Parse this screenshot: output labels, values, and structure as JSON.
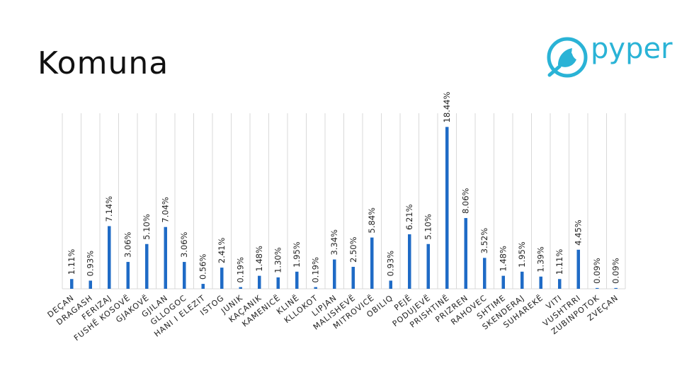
{
  "slide": {
    "title": "Komuna",
    "brand": "pyper"
  },
  "colors": {
    "bar": "#1f6bc6",
    "gridline": "#d9d9d9",
    "brand": "#2ab3d6"
  },
  "icons": {
    "logo": "bird-in-circle-icon"
  },
  "chart_data": {
    "type": "bar",
    "title": "",
    "xlabel": "",
    "ylabel": "",
    "ylim": [
      0,
      20
    ],
    "grid": "vertical",
    "legend": "none",
    "categories": [
      "DEÇAN",
      "DRAGASH",
      "FERIZAJ",
      "FUSHË KOSOVË",
      "GJAKOVË",
      "GJILAN",
      "GLLOGOC",
      "HANI I ELEZIT",
      "ISTOG",
      "JUNIK",
      "KAÇANIK",
      "KAMENICË",
      "KLINË",
      "KLLOKOT",
      "LIPJAN",
      "MALISHEVË",
      "MITROVICË",
      "OBILIQ",
      "PEJË",
      "PODUJEVË",
      "PRISHTINË",
      "PRIZREN",
      "RAHOVEC",
      "SHTIME",
      "SKENDERAJ",
      "SUHAREKË",
      "VITI",
      "VUSHTRRI",
      "ZUBINPOTOK",
      "ZVEÇAN"
    ],
    "values": [
      1.11,
      0.93,
      7.14,
      3.06,
      5.1,
      7.04,
      3.06,
      0.56,
      2.41,
      0.19,
      1.48,
      1.3,
      1.95,
      0.19,
      3.34,
      2.5,
      5.84,
      0.93,
      6.21,
      5.1,
      18.44,
      8.06,
      3.52,
      1.48,
      1.95,
      1.39,
      1.11,
      4.45,
      0.09,
      0.09
    ],
    "data_labels": [
      "1.11%",
      "0.93%",
      "7.14%",
      "3.06%",
      "5.10%",
      "7.04%",
      "3.06%",
      "0.56%",
      "2.41%",
      "0.19%",
      "1.48%",
      "1.30%",
      "1.95%",
      "0.19%",
      "3.34%",
      "2.50%",
      "5.84%",
      "0.93%",
      "6.21%",
      "5.10%",
      "18.44%",
      "8.06%",
      "3.52%",
      "1.48%",
      "1.95%",
      "1.39%",
      "1.11%",
      "4.45%",
      "0.09%",
      "0.09%"
    ]
  }
}
